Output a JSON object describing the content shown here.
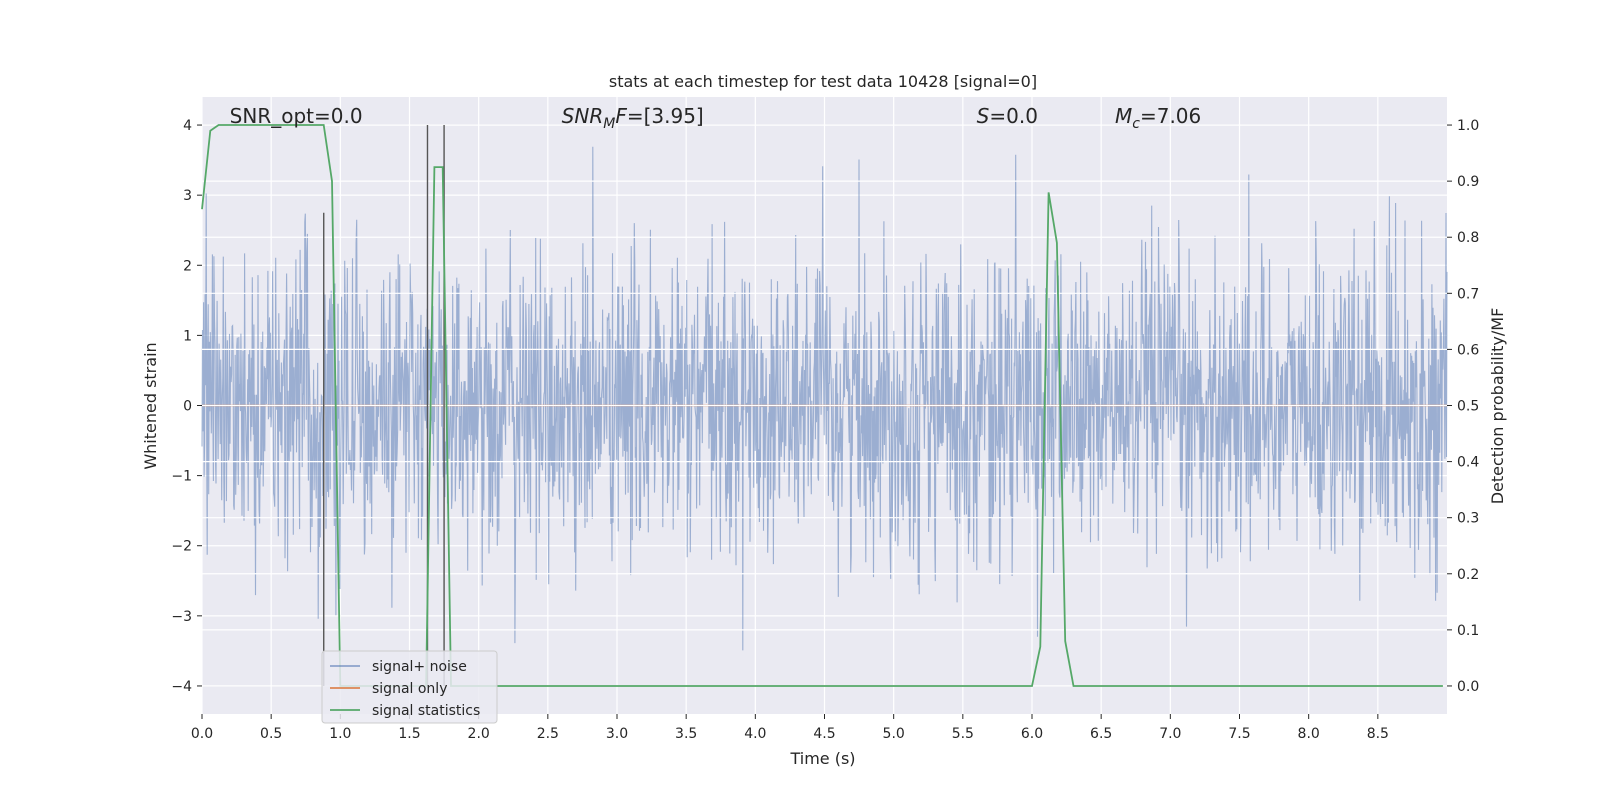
{
  "chart_data": {
    "type": "line",
    "title": "stats at each timestep for test data 10428 [signal=0]",
    "xlabel": "Time (s)",
    "ylabel": "Whitened strain",
    "ylabel_right": "Detection probability/MF",
    "xlim": [
      0.0,
      9.0
    ],
    "ylim": [
      -4.4,
      4.4
    ],
    "ylim_right": [
      -0.05,
      1.05
    ],
    "xticks": [
      "0.0",
      "0.5",
      "1.0",
      "1.5",
      "2.0",
      "2.5",
      "3.0",
      "3.5",
      "4.0",
      "4.5",
      "5.0",
      "5.5",
      "6.0",
      "6.5",
      "7.0",
      "7.5",
      "8.0",
      "8.5"
    ],
    "yticks": [
      "4",
      "3",
      "2",
      "1",
      "0",
      "−1",
      "−2",
      "−3",
      "−4"
    ],
    "yticks_right": [
      "1.0",
      "0.9",
      "0.8",
      "0.7",
      "0.6",
      "0.5",
      "0.4",
      "0.3",
      "0.2",
      "0.1",
      "0.0"
    ],
    "grid": true,
    "legend_position": "lower-left",
    "annotations": [
      {
        "text": "SNR_opt=0.0",
        "x": 0.2
      },
      {
        "text": "SNR_MF=[3.95]",
        "x": 2.6,
        "math": "snr_mf"
      },
      {
        "text": "S=0.0",
        "x": 5.6,
        "math": "s"
      },
      {
        "text": "M_c=7.06",
        "x": 6.6,
        "math": "mc"
      }
    ],
    "series": [
      {
        "name": "signal+ noise",
        "color": "#4c72b0",
        "kind": "noise",
        "amplitude_sd": 1.05,
        "max_abs": 4.0,
        "x_range": [
          0.0,
          9.0
        ]
      },
      {
        "name": "signal only",
        "color": "#dd8452",
        "kind": "line",
        "x": [
          0.0,
          9.0
        ],
        "y": [
          0.0,
          0.0
        ]
      },
      {
        "name": "signal statistics",
        "color": "#55a868",
        "axis": "right",
        "x": [
          0.0,
          0.06,
          0.12,
          0.88,
          0.94,
          1.0,
          1.06,
          1.62,
          1.68,
          1.74,
          1.8,
          1.86,
          6.0,
          6.06,
          6.12,
          6.18,
          6.24,
          6.3,
          6.36,
          8.97
        ],
        "y": [
          0.85,
          0.99,
          1.0,
          1.0,
          0.9,
          0.0,
          0.0,
          0.0,
          0.925,
          0.925,
          0.0,
          0.0,
          0.0,
          0.07,
          0.88,
          0.79,
          0.08,
          0.0,
          0.0,
          0.0
        ]
      }
    ],
    "vertical_lines": [
      {
        "x": 0.88,
        "y_top": 2.75
      },
      {
        "x": 1.63,
        "y_top": 4.0
      },
      {
        "x": 1.75,
        "y_top": 4.0
      }
    ],
    "vertical_line_color": "#555555"
  }
}
